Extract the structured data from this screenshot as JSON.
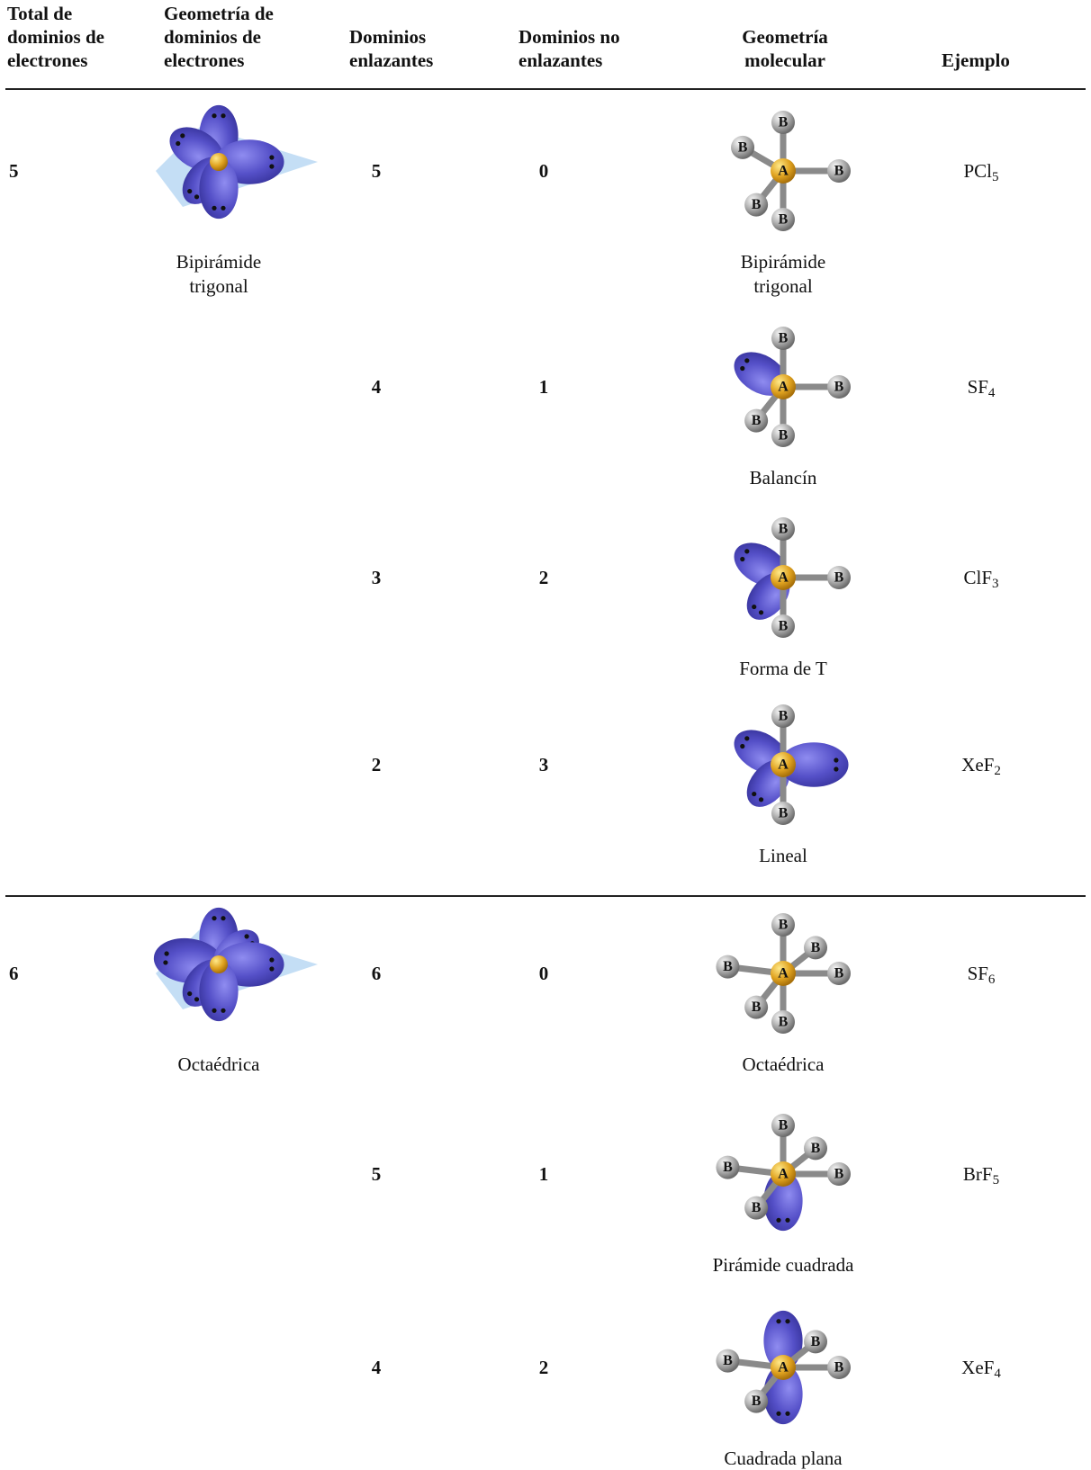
{
  "header": [
    [
      "Total de",
      "dominios de",
      "electrones"
    ],
    [
      "Geometría de",
      "dominios de",
      "electrones"
    ],
    [
      "Dominios",
      "enlazantes"
    ],
    [
      "Dominios no",
      "enlazantes"
    ],
    [
      "Geometría",
      "molecular"
    ],
    [
      "Ejemplo"
    ]
  ],
  "atoms": {
    "central": "A",
    "terminal": "B"
  },
  "groups": [
    {
      "total": 5,
      "domain_geometry": [
        "Bipirámide",
        "trigonal"
      ],
      "rows": [
        {
          "bonding": 5,
          "nonbonding": 0,
          "molecular_geometry": [
            "Bipirámide",
            "trigonal"
          ],
          "example": {
            "formula": "PCl",
            "subscript": "5"
          }
        },
        {
          "bonding": 4,
          "nonbonding": 1,
          "molecular_geometry": [
            "Balancín"
          ],
          "example": {
            "formula": "SF",
            "subscript": "4"
          }
        },
        {
          "bonding": 3,
          "nonbonding": 2,
          "molecular_geometry": [
            "Forma de T"
          ],
          "example": {
            "formula": "ClF",
            "subscript": "3"
          }
        },
        {
          "bonding": 2,
          "nonbonding": 3,
          "molecular_geometry": [
            "Lineal"
          ],
          "example": {
            "formula": "XeF",
            "subscript": "2"
          }
        }
      ]
    },
    {
      "total": 6,
      "domain_geometry": [
        "Octaédrica"
      ],
      "rows": [
        {
          "bonding": 6,
          "nonbonding": 0,
          "molecular_geometry": [
            "Octaédrica"
          ],
          "example": {
            "formula": "SF",
            "subscript": "6"
          }
        },
        {
          "bonding": 5,
          "nonbonding": 1,
          "molecular_geometry": [
            "Pirámide cuadrada"
          ],
          "example": {
            "formula": "BrF",
            "subscript": "5"
          }
        },
        {
          "bonding": 4,
          "nonbonding": 2,
          "molecular_geometry": [
            "Cuadrada plana"
          ],
          "example": {
            "formula": "XeF",
            "subscript": "4"
          }
        }
      ]
    }
  ]
}
